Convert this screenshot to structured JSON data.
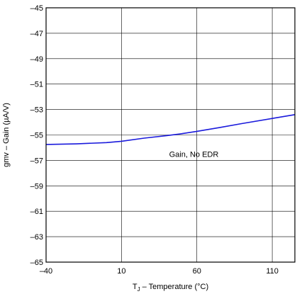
{
  "chart_data": {
    "type": "line",
    "xlabel": "T",
    "xlabel_sub": "J",
    "xlabel_rest": " – Temperature (°C)",
    "ylabel": "gmv – Gain (µA/V)",
    "xlim": [
      -40,
      125
    ],
    "ylim": [
      -65,
      -45
    ],
    "x_ticks": [
      -40,
      10,
      60,
      110
    ],
    "x_tick_labels": [
      "–40",
      "10",
      "60",
      "110"
    ],
    "y_ticks": [
      -45,
      -47,
      -49,
      -51,
      -53,
      -55,
      -57,
      -59,
      -61,
      -63,
      -65
    ],
    "y_tick_labels": [
      "–45",
      "–47",
      "–49",
      "–51",
      "–53",
      "–55",
      "–57",
      "–59",
      "–61",
      "–63",
      "–65"
    ],
    "grid": true,
    "series": [
      {
        "color": "#1a1adc",
        "x": [
          -40,
          -20,
          0,
          10,
          25,
          40,
          50,
          60,
          75,
          90,
          110,
          125
        ],
        "y": [
          -55.75,
          -55.7,
          -55.6,
          -55.5,
          -55.25,
          -55.05,
          -54.9,
          -54.72,
          -54.42,
          -54.1,
          -53.7,
          -53.4
        ]
      }
    ],
    "annotations": [
      {
        "text": "Gain, No EDR",
        "x": 58,
        "y": -56.5
      }
    ]
  }
}
